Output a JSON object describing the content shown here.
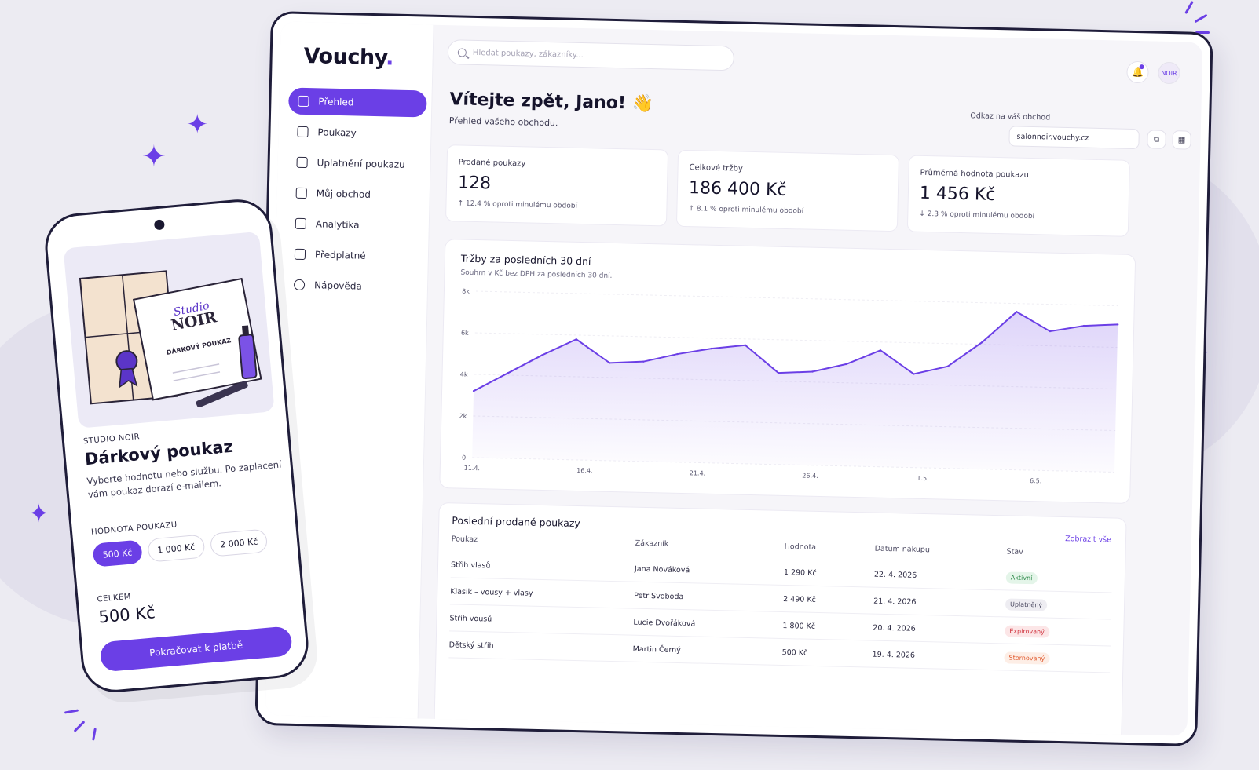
{
  "brand": {
    "name": "Vouchy",
    "dot": ".",
    "accent": "#6b3fe6"
  },
  "sidebar": {
    "items": [
      {
        "label": "Přehled",
        "icon": "grid-icon",
        "active": true
      },
      {
        "label": "Poukazy",
        "icon": "ticket-icon"
      },
      {
        "label": "Uplatnění poukazu",
        "icon": "check-square-icon"
      },
      {
        "label": "Můj obchod",
        "icon": "store-icon"
      },
      {
        "label": "Analytika",
        "icon": "chart-icon"
      },
      {
        "label": "Předplatné",
        "icon": "card-icon"
      },
      {
        "label": "Nápověda",
        "icon": "help-icon"
      }
    ]
  },
  "header": {
    "search_placeholder": "Hledat poukazy, zákazníky...",
    "bell_icon": "🔔",
    "avatar_text": "NOIR"
  },
  "welcome": {
    "title": "Vítejte zpět, Jano! 👋",
    "subtitle": "Přehled vašeho obchodu."
  },
  "shop_link": {
    "label": "Odkaz na váš obchod",
    "value": "salonnoir.vouchy.cz",
    "copy_icon": "⧉",
    "qr_icon": "▦"
  },
  "stats": [
    {
      "label": "Prodané poukazy",
      "value": "128",
      "change": "↑ 12.4 % oproti minulému období"
    },
    {
      "label": "Celkové tržby",
      "value": "186 400 Kč",
      "change": "↑ 8.1 % oproti minulému období"
    },
    {
      "label": "Průměrná hodnota poukazu",
      "value": "1 456 Kč",
      "change": "↓ 2.3 % oproti minulému období"
    }
  ],
  "chart": {
    "title": "Tržby za posledních 30 dní",
    "subtitle": "Souhrn v Kč bez DPH za posledních 30 dní."
  },
  "chart_data": {
    "type": "area",
    "x_ticks": [
      "11.4.",
      "16.4.",
      "21.4.",
      "26.4.",
      "1.5.",
      "6.5."
    ],
    "y_ticks": [
      "0",
      "2k",
      "4k",
      "6k",
      "8k"
    ],
    "ylim": [
      0,
      8000
    ],
    "x": [
      "11.4.",
      "13.4.",
      "15.4.",
      "17.4.",
      "18.4.",
      "19.4.",
      "21.4.",
      "23.4.",
      "25.4.",
      "26.4.",
      "27.4.",
      "29.4.",
      "1.5.",
      "2.5.",
      "3.5.",
      "5.5.",
      "7.5.",
      "8.5.",
      "9.5.",
      "10.5."
    ],
    "values": [
      3200,
      4100,
      5000,
      5800,
      4700,
      4800,
      5200,
      5500,
      5700,
      4400,
      4500,
      4900,
      5600,
      4500,
      4900,
      6100,
      7600,
      6700,
      7000,
      7100
    ],
    "color": "#6b3fe6",
    "grid": true
  },
  "table": {
    "title": "Poslední prodané poukazy",
    "see_all": "Zobrazit vše",
    "columns": [
      "Poukaz",
      "Zákazník",
      "Hodnota",
      "Datum nákupu",
      "Stav"
    ],
    "rows": [
      {
        "voucher": "Střih vlasů",
        "customer": "Jana Nováková",
        "value": "1 290 Kč",
        "date": "22. 4. 2026",
        "status": "Aktivní",
        "status_color": "#2e8a4a",
        "status_bg": "#e4f5e9"
      },
      {
        "voucher": "Klasik – vousy + vlasy",
        "customer": "Petr Svoboda",
        "value": "2 490 Kč",
        "date": "21. 4. 2026",
        "status": "Uplatněný",
        "status_color": "#4a4860",
        "status_bg": "#eeedf2"
      },
      {
        "voucher": "Střih vousů",
        "customer": "Lucie Dvořáková",
        "value": "1 800 Kč",
        "date": "20. 4. 2026",
        "status": "Expirovaný",
        "status_color": "#d0343f",
        "status_bg": "#fce6e7"
      },
      {
        "voucher": "Dětský střih",
        "customer": "Martin Černý",
        "value": "500 Kč",
        "date": "19. 4. 2026",
        "status": "Stornovaný",
        "status_color": "#e0582c",
        "status_bg": "#fdeee6"
      }
    ]
  },
  "phone": {
    "brand_label": "STUDIO NOIR",
    "title": "Dárkový poukaz",
    "description": "Vyberte hodnotu nebo službu. Po zaplacení vám poukaz dorazí e-mailem.",
    "value_label": "HODNOTA POUKAZU",
    "chips": [
      "500 Kč",
      "1 000 Kč",
      "2 000 Kč"
    ],
    "total_label": "CELKEM",
    "total": "500 Kč",
    "pay_button": "Pokračovat k platbě",
    "voucher_card": {
      "studio": "Studio",
      "noir": "NOIR",
      "heading": "DÁRKOVÝ POUKAZ"
    }
  }
}
